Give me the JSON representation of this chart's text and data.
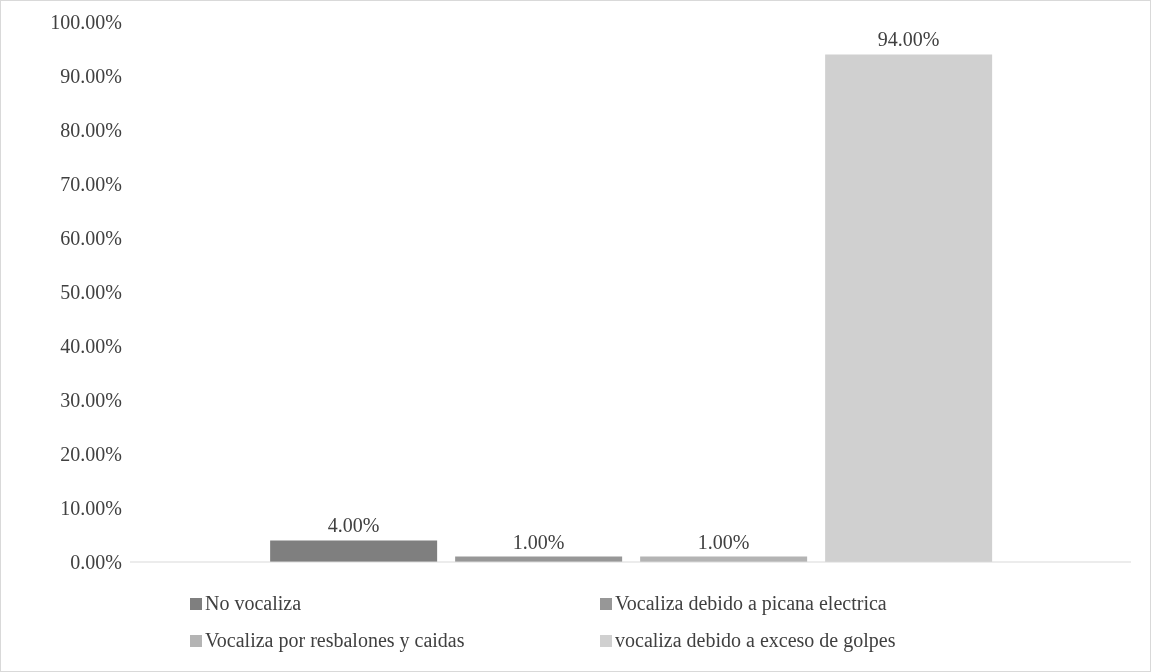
{
  "chart_data": {
    "type": "bar",
    "categories": [
      null
    ],
    "series": [
      {
        "name": "No vocaliza",
        "color": "#7f7f7f",
        "values": [
          4
        ],
        "value_labels": [
          "4.00%"
        ]
      },
      {
        "name": "Vocaliza debido a picana electrica",
        "color": "#979797",
        "values": [
          1
        ],
        "value_labels": [
          "1.00%"
        ]
      },
      {
        "name": "Vocaliza por resbalones y caidas",
        "color": "#b4b4b4",
        "values": [
          1
        ],
        "value_labels": [
          "1.00%"
        ]
      },
      {
        "name": "vocaliza debido a exceso de golpes",
        "color": "#d0d0d0",
        "values": [
          94
        ],
        "value_labels": [
          "94.00%"
        ]
      }
    ],
    "ylim": [
      0,
      100
    ],
    "yticks": [
      {
        "value": 0,
        "label": "0.00%"
      },
      {
        "value": 10,
        "label": "10.00%"
      },
      {
        "value": 20,
        "label": "20.00%"
      },
      {
        "value": 30,
        "label": "30.00%"
      },
      {
        "value": 40,
        "label": "40.00%"
      },
      {
        "value": 50,
        "label": "50.00%"
      },
      {
        "value": 60,
        "label": "60.00%"
      },
      {
        "value": 70,
        "label": "70.00%"
      },
      {
        "value": 80,
        "label": "80.00%"
      },
      {
        "value": 90,
        "label": "90.00%"
      },
      {
        "value": 100,
        "label": "100.00%"
      }
    ],
    "grid": false,
    "legend": "bottom"
  }
}
